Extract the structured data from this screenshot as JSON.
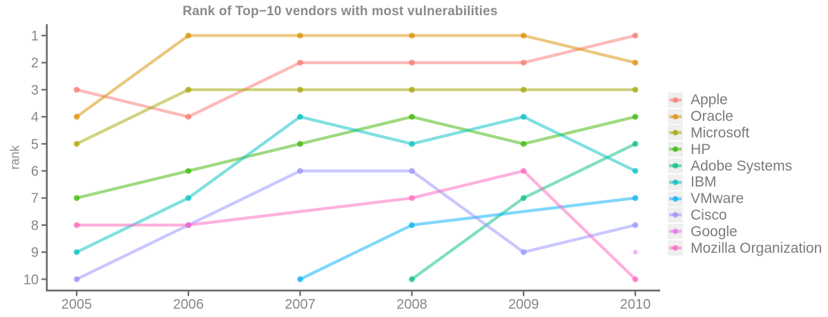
{
  "chart_data": {
    "type": "line",
    "title": "Rank of Top−10 vendors with most vulnerabilities",
    "xlabel": "",
    "ylabel": "rank",
    "categories": [
      "2005",
      "2006",
      "2007",
      "2008",
      "2009",
      "2010"
    ],
    "y_ticks": [
      1,
      2,
      3,
      4,
      5,
      6,
      7,
      8,
      9,
      10
    ],
    "ylim": [
      1,
      10
    ],
    "y_axis_inverted": true,
    "grid": false,
    "legend_position": "right",
    "line_opacity": 0.5,
    "point_opacity": 0.72,
    "series": [
      {
        "name": "Apple",
        "color": "#F8766D",
        "values": [
          3,
          4,
          2,
          2,
          2,
          1
        ]
      },
      {
        "name": "Oracle",
        "color": "#D89000",
        "values": [
          4,
          1,
          1,
          1,
          1,
          2
        ]
      },
      {
        "name": "Microsoft",
        "color": "#A3A500",
        "values": [
          5,
          3,
          3,
          3,
          3,
          3
        ]
      },
      {
        "name": "HP",
        "color": "#39B600",
        "values": [
          7,
          6,
          5,
          4,
          5,
          4
        ]
      },
      {
        "name": "Adobe Systems",
        "color": "#00BF7D",
        "values": [
          null,
          null,
          null,
          10,
          7,
          5
        ]
      },
      {
        "name": "IBM",
        "color": "#00BFC4",
        "values": [
          9,
          7,
          4,
          5,
          4,
          6
        ]
      },
      {
        "name": "VMware",
        "color": "#00B0F6",
        "values": [
          null,
          null,
          10,
          8,
          null,
          7
        ]
      },
      {
        "name": "Cisco",
        "color": "#9590FF",
        "values": [
          10,
          8,
          6,
          6,
          9,
          8
        ]
      },
      {
        "name": "Google",
        "color": "#E76BF3",
        "values": [
          null,
          null,
          null,
          null,
          null,
          9
        ]
      },
      {
        "name": "Mozilla Organization",
        "color": "#FF62BC",
        "values": [
          8,
          8,
          null,
          7,
          6,
          10
        ]
      }
    ]
  },
  "colors": {
    "background": "#ffffff",
    "axis_line": "#6a6a6a",
    "tick_label": "#878787",
    "title_text": "#8a8a8a",
    "legend_label": "#7b7b7b",
    "legend_key_bg": "#efefef"
  }
}
